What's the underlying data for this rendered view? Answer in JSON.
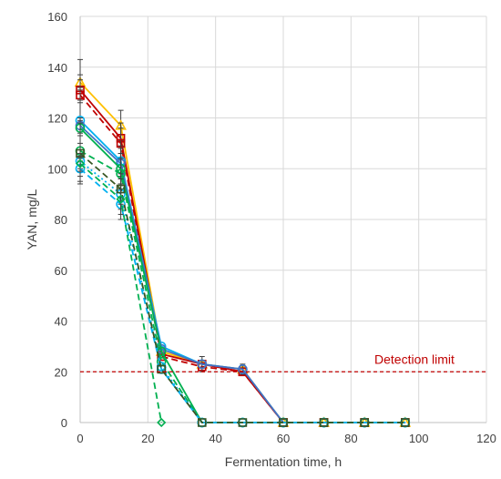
{
  "chart_data": {
    "type": "line",
    "title": "",
    "xlabel": "Fermentation time, h",
    "ylabel": "YAN, mg/L",
    "xlim": [
      0,
      120
    ],
    "ylim": [
      0,
      160
    ],
    "xticks": [
      0,
      20,
      40,
      60,
      80,
      100,
      120
    ],
    "yticks": [
      0,
      20,
      40,
      60,
      80,
      100,
      120,
      140,
      160
    ],
    "grid": "on",
    "legend": "none",
    "detection_limit": {
      "label": "Detection limit",
      "value": 20,
      "color": "#c00000"
    },
    "series": [
      {
        "color": "#ffc000",
        "marker": "triangle",
        "dash": "solid",
        "x": [
          0,
          12,
          24,
          36,
          48,
          60,
          72,
          84,
          96
        ],
        "y": [
          134,
          117,
          28,
          23,
          21,
          0,
          0,
          0,
          0
        ],
        "err": [
          3,
          6,
          0,
          0,
          0,
          0,
          0,
          0,
          0
        ]
      },
      {
        "color": "#c00000",
        "marker": "square",
        "dash": "solid",
        "x": [
          0,
          12,
          24,
          36,
          48,
          60,
          72,
          84,
          96
        ],
        "y": [
          131,
          112,
          27,
          23,
          20,
          0,
          0,
          0,
          0
        ],
        "err": [
          4,
          6,
          0,
          0,
          0,
          0,
          0,
          0,
          0
        ]
      },
      {
        "color": "#c00000",
        "marker": "square",
        "dash": "dashed",
        "x": [
          0,
          12,
          24,
          36,
          48,
          60,
          72,
          84,
          96
        ],
        "y": [
          129,
          110,
          26,
          22,
          20,
          0,
          0,
          0,
          0
        ],
        "err": [
          3,
          6,
          0,
          0,
          0,
          0,
          0,
          0,
          0
        ]
      },
      {
        "color": "#00b0f0",
        "marker": "circle",
        "dash": "solid",
        "x": [
          0,
          12,
          24,
          36,
          48,
          60,
          72,
          84,
          96
        ],
        "y": [
          119,
          103,
          30,
          23,
          21,
          0,
          0,
          0,
          0
        ],
        "err": [
          24,
          6,
          0,
          3,
          2,
          0,
          0,
          0,
          0
        ]
      },
      {
        "color": "#4472c4",
        "marker": "circle",
        "dash": "solid",
        "x": [
          0,
          12,
          24,
          36,
          48,
          60,
          72,
          84,
          96
        ],
        "y": [
          117,
          102,
          29,
          23,
          21,
          0,
          0,
          0,
          0
        ],
        "err": [
          3,
          6,
          0,
          0,
          0,
          0,
          0,
          0,
          0
        ]
      },
      {
        "color": "#00b050",
        "marker": "circle",
        "dash": "solid",
        "x": [
          0,
          12,
          24,
          36,
          48,
          60,
          72,
          84,
          96
        ],
        "y": [
          116,
          100,
          28,
          0,
          0,
          0,
          0,
          0,
          0
        ],
        "err": [
          3,
          6,
          0,
          0,
          0,
          0,
          0,
          0,
          0
        ]
      },
      {
        "color": "#00b050",
        "marker": "circle",
        "dash": "dashed",
        "x": [
          0,
          12,
          24,
          36,
          48,
          60,
          72,
          84,
          96
        ],
        "y": [
          107,
          98,
          24,
          0,
          0,
          0,
          0,
          0,
          0
        ],
        "err": [
          3,
          6,
          0,
          0,
          0,
          0,
          0,
          0,
          0
        ]
      },
      {
        "color": "#00b0f0",
        "marker": "circle",
        "dash": "dotted",
        "x": [
          0,
          12,
          24,
          36,
          48,
          60,
          72,
          84,
          96
        ],
        "y": [
          103,
          90,
          22,
          0,
          0,
          0,
          0,
          0,
          0
        ],
        "err": [
          3,
          6,
          0,
          0,
          0,
          0,
          0,
          0,
          0
        ]
      },
      {
        "color": "#00b0f0",
        "marker": "circle",
        "dash": "dashed",
        "x": [
          0,
          12,
          24,
          36,
          48,
          60,
          72,
          84,
          96
        ],
        "y": [
          100,
          86,
          21,
          0,
          0,
          0,
          0,
          0,
          0
        ],
        "err": [
          3,
          6,
          0,
          0,
          0,
          0,
          0,
          0,
          0
        ]
      },
      {
        "color": "#375623",
        "marker": "square",
        "dash": "dashed",
        "x": [
          0,
          12,
          24,
          36,
          48,
          60,
          72,
          84,
          96
        ],
        "y": [
          106,
          92,
          21,
          0,
          0,
          0,
          0,
          0,
          0
        ],
        "err": [
          12,
          6,
          0,
          0,
          0,
          0,
          0,
          0,
          0
        ]
      },
      {
        "color": "#00b050",
        "marker": "diamond",
        "dash": "dashed",
        "x": [
          0,
          12,
          24
        ],
        "y": [
          102,
          88,
          0
        ],
        "err": [
          3,
          6,
          0
        ]
      }
    ]
  }
}
